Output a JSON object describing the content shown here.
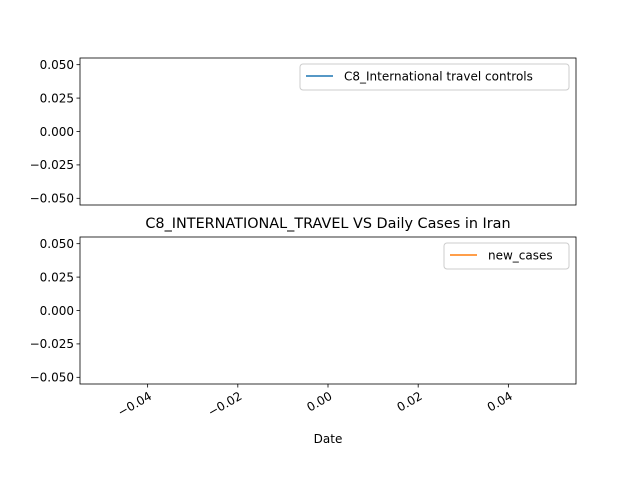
{
  "chart_data": [
    {
      "type": "line",
      "title": "",
      "xlabel": "",
      "ylabel": "",
      "x": [],
      "series": [
        {
          "name": "C8_International travel controls",
          "color": "#1f77b4",
          "values": []
        }
      ],
      "xlim": [
        -0.055,
        0.055
      ],
      "ylim": [
        -0.055,
        0.055
      ],
      "yticks": [
        "0.050",
        "0.025",
        "0.000",
        "−0.025",
        "−0.050"
      ],
      "ytick_values": [
        0.05,
        0.025,
        0.0,
        -0.025,
        -0.05
      ],
      "xticks": [],
      "legend": "top-right",
      "grid": false
    },
    {
      "type": "line",
      "title": "C8_INTERNATIONAL_TRAVEL VS Daily Cases in Iran",
      "xlabel": "Date",
      "ylabel": "",
      "x": [],
      "series": [
        {
          "name": "new_cases",
          "color": "#ff7f0e",
          "values": []
        }
      ],
      "xlim": [
        -0.055,
        0.055
      ],
      "ylim": [
        -0.055,
        0.055
      ],
      "yticks": [
        "0.050",
        "0.025",
        "0.000",
        "−0.025",
        "−0.050"
      ],
      "ytick_values": [
        0.05,
        0.025,
        0.0,
        -0.025,
        -0.05
      ],
      "xticks": [
        "−0.04",
        "−0.02",
        "0.00",
        "0.02",
        "0.04"
      ],
      "xtick_values": [
        -0.04,
        -0.02,
        0.0,
        0.02,
        0.04
      ],
      "legend": "top-right",
      "grid": false
    }
  ]
}
